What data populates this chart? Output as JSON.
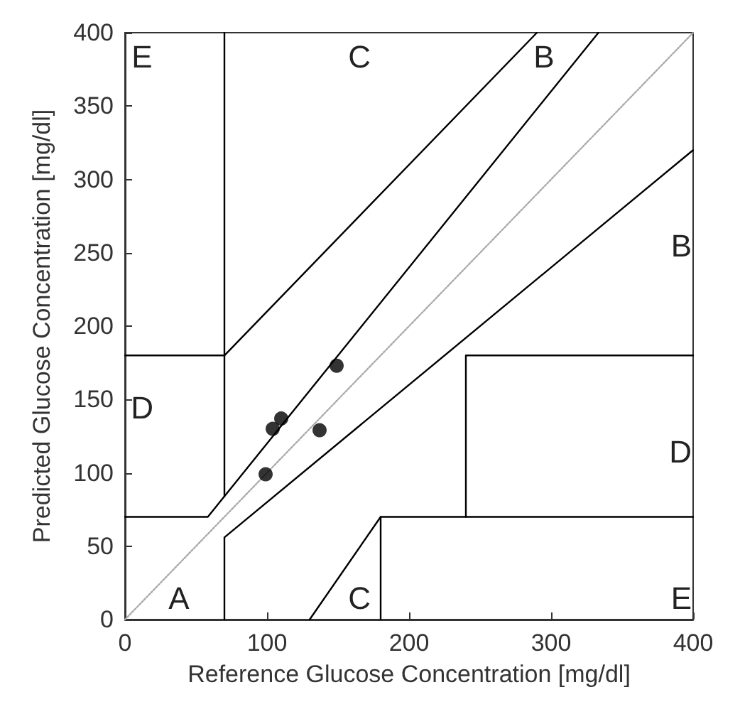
{
  "chart_data": {
    "type": "scatter",
    "xlabel": "Reference Glucose Concentration [mg/dl]",
    "ylabel": "Predicted Glucose Concentration [mg/dl]",
    "xlim": [
      0,
      400
    ],
    "xticks": [
      0,
      100,
      200,
      300,
      400
    ],
    "ylim": [
      0,
      400
    ],
    "yticks": [
      0,
      50,
      100,
      150,
      200,
      250,
      300,
      350,
      400
    ],
    "grid": false,
    "marker": "circle",
    "series": [
      {
        "color": "#000000",
        "x": [
          149,
          110,
          104,
          137,
          99
        ],
        "values": [
          173,
          137,
          130,
          129,
          99
        ]
      },
      {
        "type": "line",
        "color": "#aaaaaa",
        "line_style": "dotted",
        "marker": "none",
        "x": [
          0,
          400
        ],
        "values": [
          0,
          400
        ]
      },
      {
        "type": "line",
        "color": "#000000",
        "line_style": "solid",
        "marker": "none",
        "x": [
          0,
          58.33,
          333.33
        ],
        "values": [
          70,
          70,
          400
        ]
      },
      {
        "type": "line",
        "color": "#000000",
        "line_style": "solid",
        "marker": "none",
        "x": [
          70,
          70
        ],
        "values": [
          84,
          400
        ]
      },
      {
        "type": "line",
        "color": "#000000",
        "line_style": "solid",
        "marker": "none",
        "x": [
          0,
          70,
          290
        ],
        "values": [
          180,
          180,
          400
        ]
      },
      {
        "type": "line",
        "color": "#000000",
        "line_style": "solid",
        "marker": "none",
        "x": [
          70,
          70,
          400
        ],
        "values": [
          0,
          56,
          320
        ]
      },
      {
        "type": "line",
        "color": "#000000",
        "line_style": "solid",
        "marker": "none",
        "x": [
          180,
          180,
          400
        ],
        "values": [
          0,
          70,
          70
        ]
      },
      {
        "type": "line",
        "color": "#000000",
        "line_style": "solid",
        "marker": "none",
        "x": [
          400,
          240,
          240
        ],
        "values": [
          180,
          180,
          70
        ]
      },
      {
        "type": "line",
        "color": "#000000",
        "line_style": "solid",
        "marker": "none",
        "x": [
          130,
          180
        ],
        "values": [
          0,
          70
        ]
      }
    ],
    "annotations": [
      "A",
      "B",
      "B",
      "C",
      "C",
      "D",
      "D",
      "E",
      "E"
    ]
  }
}
